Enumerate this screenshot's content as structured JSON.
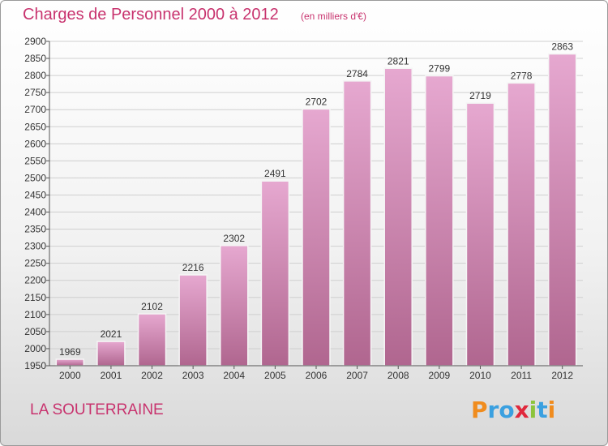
{
  "header": {
    "title": "Charges de Personnel 2000 à 2012",
    "subtitle": "(en milliers d'€)"
  },
  "footer": {
    "commune": "LA SOUTERRAINE",
    "logo": "Proxiti"
  },
  "colors": {
    "bar_top": "#e6a8d0",
    "bar_bottom": "#b0668f",
    "title": "#c8336e",
    "logo_letters": [
      "#f08c1e",
      "#3aa0e0",
      "#3aa0e0",
      "#e0283c",
      "#8cc43c",
      "#3aa0e0",
      "#f08c1e"
    ]
  },
  "chart_data": {
    "type": "bar",
    "title": "Charges de Personnel 2000 à 2012",
    "subtitle": "(en milliers d'€)",
    "categories": [
      "2000",
      "2001",
      "2002",
      "2003",
      "2004",
      "2005",
      "2006",
      "2007",
      "2008",
      "2009",
      "2010",
      "2011",
      "2012"
    ],
    "values": [
      1969,
      2021,
      2102,
      2216,
      2302,
      2491,
      2702,
      2784,
      2821,
      2799,
      2719,
      2778,
      2863
    ],
    "ylim": [
      1950,
      2900
    ],
    "ytick_step": 50,
    "grid": true,
    "legend": "none"
  }
}
